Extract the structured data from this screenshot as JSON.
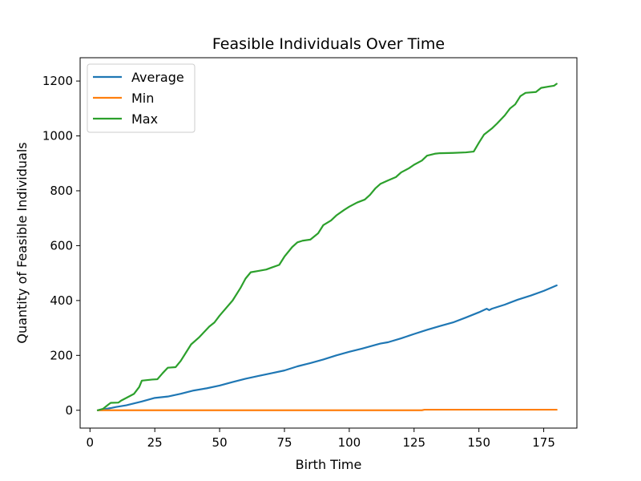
{
  "chart_data": {
    "type": "line",
    "title": "Feasible Individuals Over Time",
    "xlabel": "Birth Time",
    "ylabel": "Quantity of Feasible Individuals",
    "xlim": [
      -3.8,
      187.8
    ],
    "ylim": [
      -65,
      1285
    ],
    "xticks": [
      0,
      25,
      50,
      75,
      100,
      125,
      150,
      175
    ],
    "yticks": [
      0,
      200,
      400,
      600,
      800,
      1000,
      1200
    ],
    "grid": false,
    "legend_position": "top-left",
    "series": [
      {
        "name": "Average",
        "color": "#1f77b4",
        "points": [
          [
            3,
            0
          ],
          [
            5,
            3
          ],
          [
            8,
            8
          ],
          [
            10,
            12
          ],
          [
            14,
            18
          ],
          [
            17,
            25
          ],
          [
            20,
            32
          ],
          [
            25,
            45
          ],
          [
            30,
            50
          ],
          [
            35,
            60
          ],
          [
            40,
            72
          ],
          [
            45,
            80
          ],
          [
            50,
            90
          ],
          [
            55,
            103
          ],
          [
            60,
            115
          ],
          [
            65,
            125
          ],
          [
            70,
            135
          ],
          [
            75,
            145
          ],
          [
            80,
            160
          ],
          [
            85,
            172
          ],
          [
            90,
            185
          ],
          [
            95,
            200
          ],
          [
            100,
            213
          ],
          [
            105,
            225
          ],
          [
            110,
            238
          ],
          [
            112,
            243
          ],
          [
            115,
            248
          ],
          [
            120,
            262
          ],
          [
            125,
            278
          ],
          [
            130,
            293
          ],
          [
            135,
            307
          ],
          [
            140,
            320
          ],
          [
            145,
            338
          ],
          [
            150,
            357
          ],
          [
            153,
            370
          ],
          [
            154,
            365
          ],
          [
            155,
            370
          ],
          [
            160,
            385
          ],
          [
            165,
            403
          ],
          [
            170,
            418
          ],
          [
            175,
            435
          ],
          [
            180,
            455
          ]
        ]
      },
      {
        "name": "Min",
        "color": "#ff7f0e",
        "points": [
          [
            3,
            0
          ],
          [
            50,
            0
          ],
          [
            100,
            0
          ],
          [
            128,
            0
          ],
          [
            129,
            2
          ],
          [
            150,
            2
          ],
          [
            180,
            2
          ]
        ]
      },
      {
        "name": "Max",
        "color": "#2ca02c",
        "points": [
          [
            3,
            0
          ],
          [
            5,
            5
          ],
          [
            7,
            20
          ],
          [
            8,
            27
          ],
          [
            11,
            28
          ],
          [
            12,
            35
          ],
          [
            14,
            45
          ],
          [
            17,
            60
          ],
          [
            19,
            85
          ],
          [
            20,
            108
          ],
          [
            24,
            112
          ],
          [
            26,
            113
          ],
          [
            28,
            135
          ],
          [
            30,
            155
          ],
          [
            33,
            157
          ],
          [
            35,
            180
          ],
          [
            37,
            210
          ],
          [
            39,
            240
          ],
          [
            42,
            265
          ],
          [
            44,
            285
          ],
          [
            46,
            305
          ],
          [
            48,
            320
          ],
          [
            50,
            345
          ],
          [
            55,
            400
          ],
          [
            58,
            445
          ],
          [
            60,
            480
          ],
          [
            62,
            503
          ],
          [
            65,
            508
          ],
          [
            68,
            513
          ],
          [
            70,
            520
          ],
          [
            73,
            530
          ],
          [
            75,
            560
          ],
          [
            78,
            595
          ],
          [
            80,
            612
          ],
          [
            82,
            618
          ],
          [
            85,
            622
          ],
          [
            88,
            645
          ],
          [
            90,
            675
          ],
          [
            93,
            692
          ],
          [
            95,
            710
          ],
          [
            98,
            730
          ],
          [
            100,
            742
          ],
          [
            103,
            757
          ],
          [
            106,
            768
          ],
          [
            108,
            785
          ],
          [
            110,
            808
          ],
          [
            112,
            825
          ],
          [
            115,
            838
          ],
          [
            118,
            850
          ],
          [
            120,
            867
          ],
          [
            123,
            882
          ],
          [
            125,
            895
          ],
          [
            128,
            910
          ],
          [
            130,
            928
          ],
          [
            133,
            935
          ],
          [
            135,
            937
          ],
          [
            140,
            938
          ],
          [
            145,
            940
          ],
          [
            148,
            943
          ],
          [
            150,
            975
          ],
          [
            152,
            1005
          ],
          [
            155,
            1027
          ],
          [
            157,
            1045
          ],
          [
            160,
            1075
          ],
          [
            162,
            1100
          ],
          [
            164,
            1115
          ],
          [
            166,
            1145
          ],
          [
            168,
            1157
          ],
          [
            172,
            1160
          ],
          [
            174,
            1175
          ],
          [
            177,
            1180
          ],
          [
            179,
            1183
          ],
          [
            180,
            1190
          ]
        ]
      }
    ]
  }
}
